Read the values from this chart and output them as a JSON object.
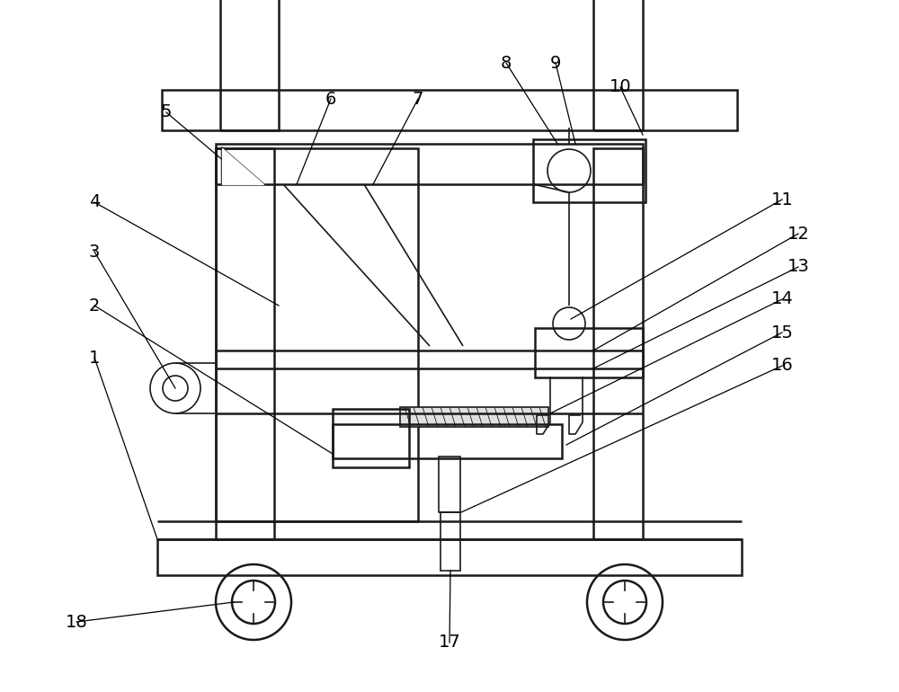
{
  "bg_color": "#ffffff",
  "line_color": "#1a1a1a",
  "lw_main": 1.8,
  "lw_thin": 1.2,
  "lw_leader": 0.9
}
